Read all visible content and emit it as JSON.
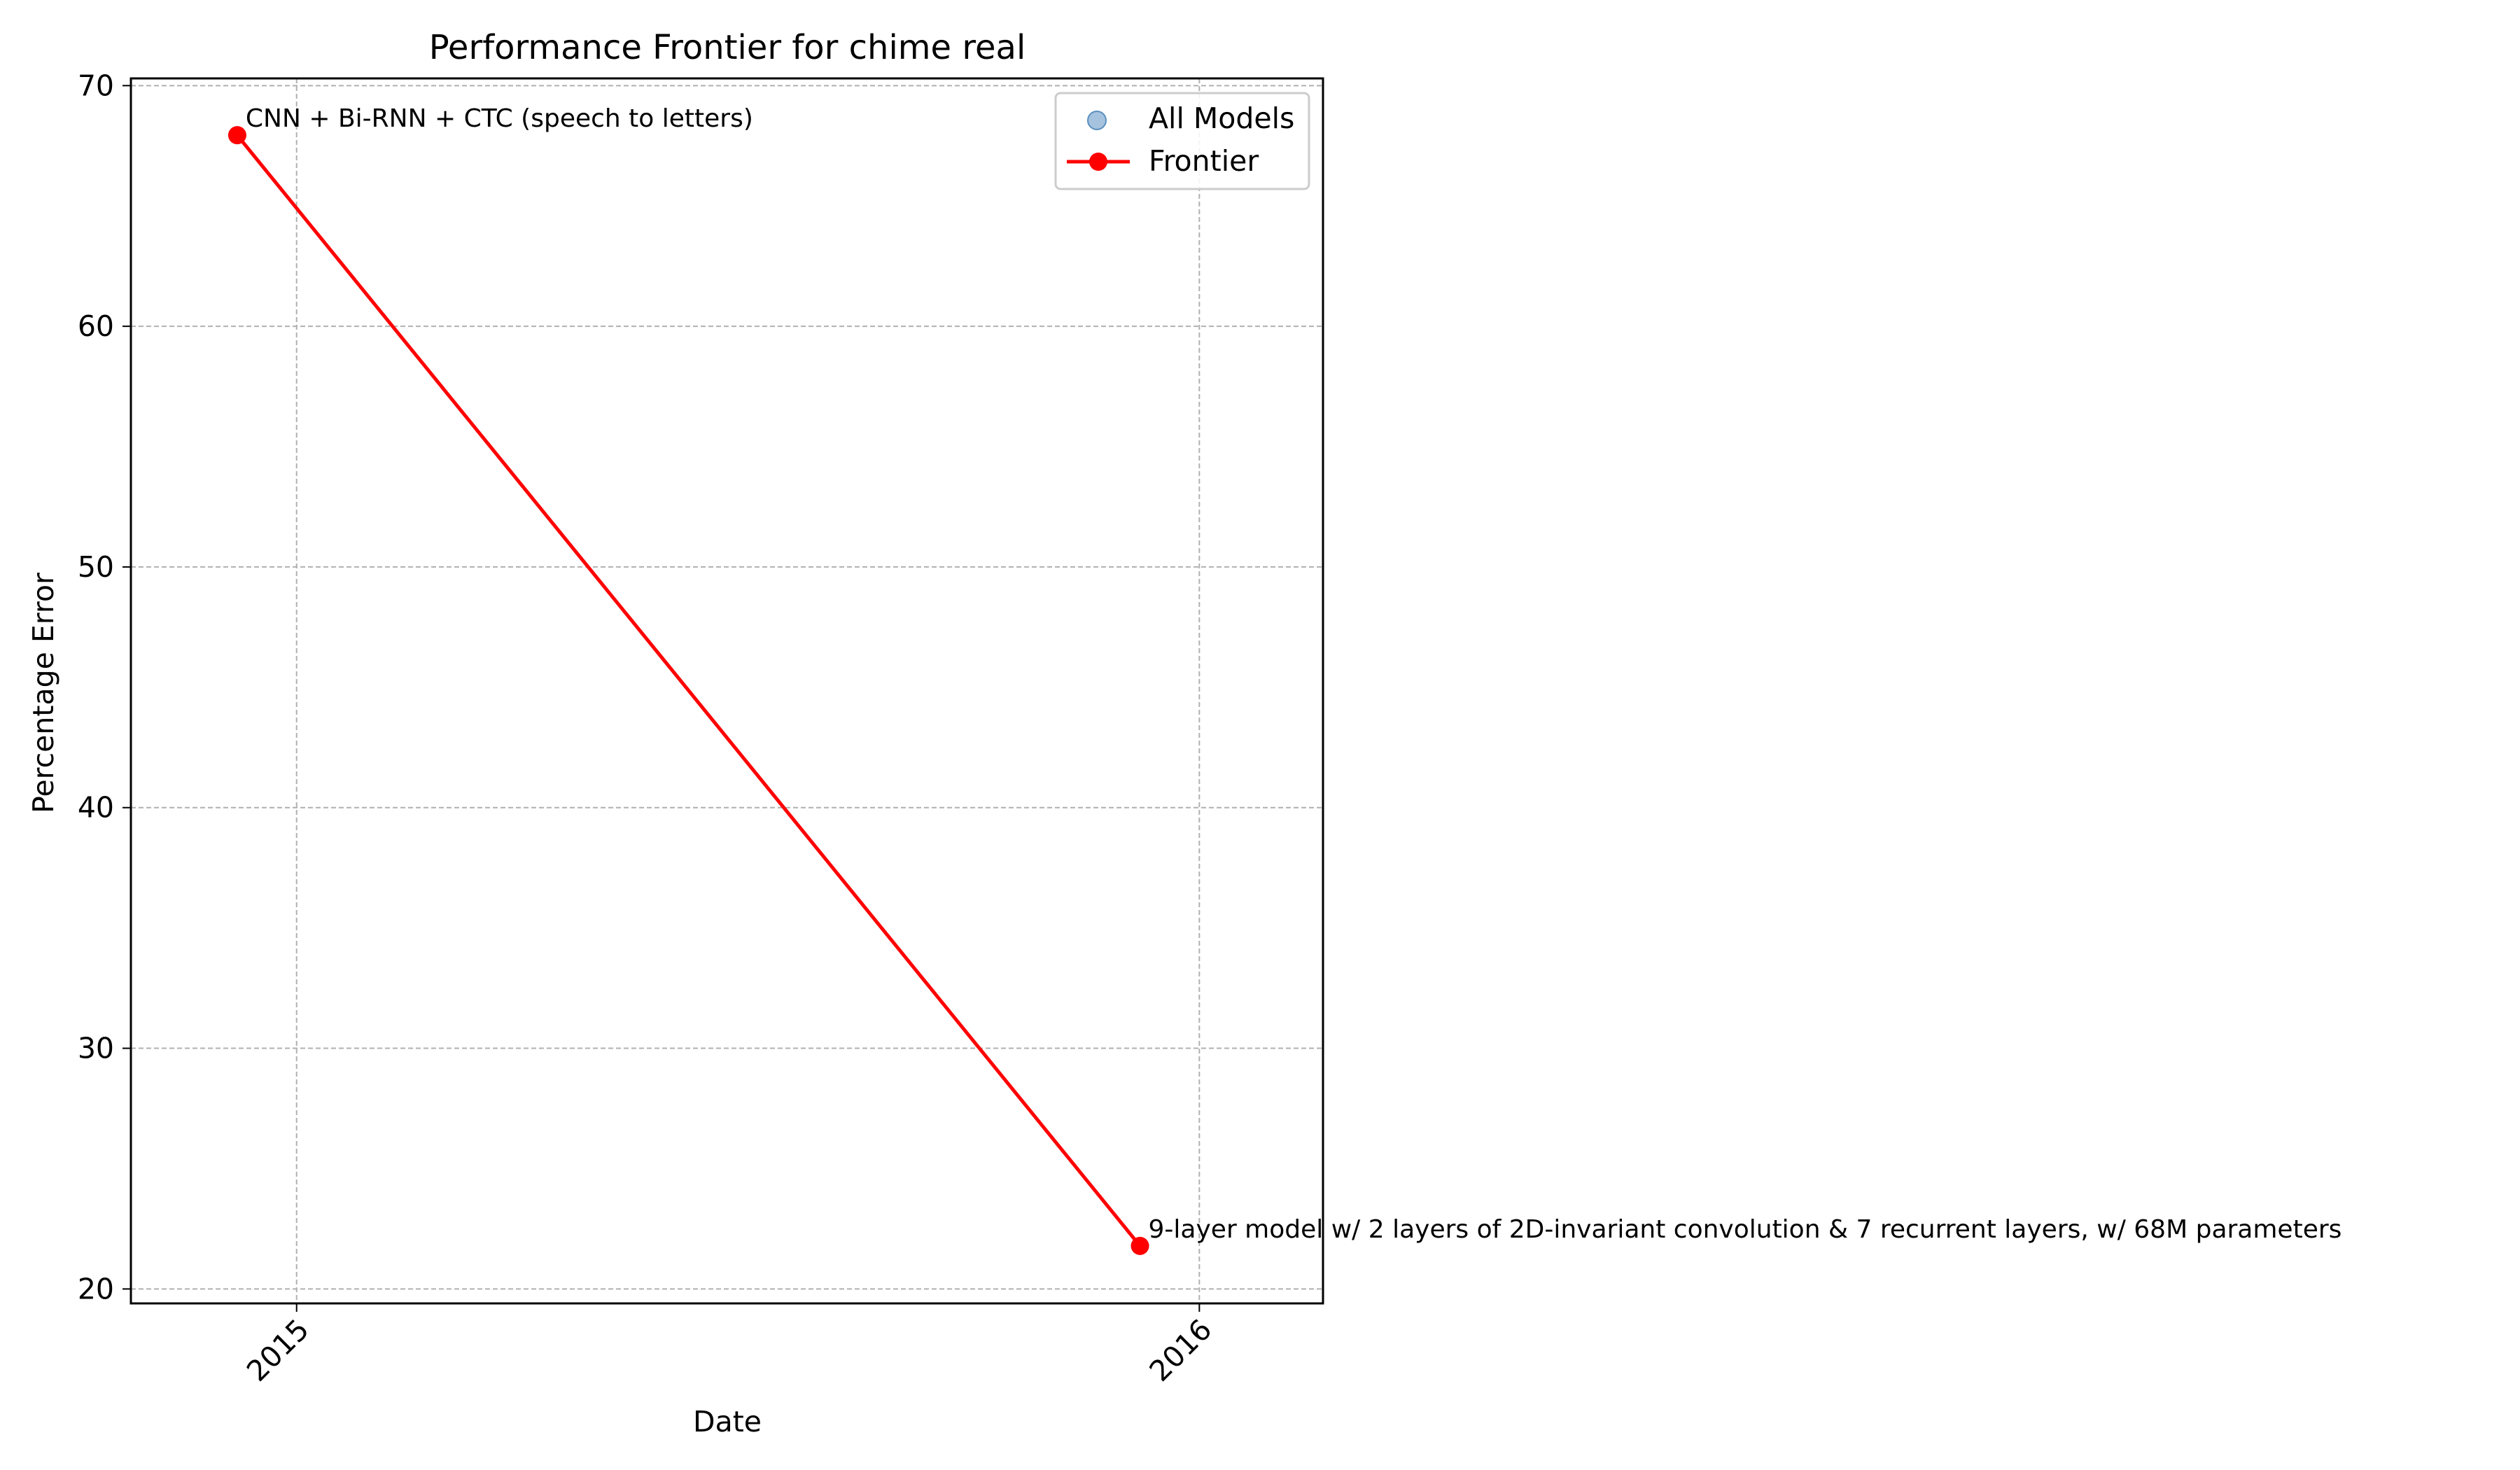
{
  "chart_data": {
    "type": "line",
    "title": "Performance Frontier for chime real",
    "xlabel": "Date",
    "ylabel": "Percentage Error",
    "x_ticks": [
      "2015",
      "2016"
    ],
    "y_ticks": [
      "20",
      "30",
      "40",
      "50",
      "60",
      "70"
    ],
    "xlim": [
      "2014-10-26",
      "2016-02-20"
    ],
    "ylim": [
      19.4,
      70.3
    ],
    "grid": true,
    "legend_position": "top-right",
    "series": [
      {
        "name": "All Models",
        "style": "scatter",
        "color": "#7fa9d0",
        "points": [
          {
            "x": "2014-12-08",
            "y": 67.94
          },
          {
            "x": "2015-12-08",
            "y": 21.79
          }
        ]
      },
      {
        "name": "Frontier",
        "style": "line",
        "color": "#ff0000",
        "points": [
          {
            "x": "2014-12-08",
            "y": 67.94
          },
          {
            "x": "2015-12-08",
            "y": 21.79
          }
        ]
      }
    ],
    "annotations": [
      {
        "x": "2014-12-08",
        "y": 67.94,
        "text": "CNN + Bi-RNN + CTC (speech to letters)"
      },
      {
        "x": "2015-12-08",
        "y": 21.79,
        "text": "9-layer model w/ 2 layers of 2D-invariant convolution & 7 recurrent layers, w/ 68M parameters"
      }
    ]
  }
}
